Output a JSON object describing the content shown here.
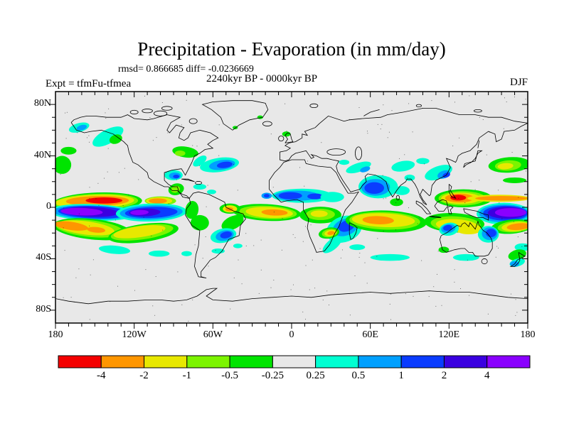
{
  "window": {
    "background": "#ffffff"
  },
  "header": {
    "title": "Precipitation - Evaporation (in mm/day)",
    "stats": "rmsd= 0.866685 diff= -0.0236669",
    "period": "2240kyr BP - 0000kyr BP",
    "experiment": "Expt = tfmFu-tfmea",
    "season": "DJF"
  },
  "axes": {
    "x_ticks": [
      {
        "label": "180",
        "lon": -180
      },
      {
        "label": "120W",
        "lon": -120
      },
      {
        "label": "60W",
        "lon": -60
      },
      {
        "label": "0",
        "lon": 0
      },
      {
        "label": "60E",
        "lon": 60
      },
      {
        "label": "120E",
        "lon": 120
      },
      {
        "label": "180",
        "lon": 180
      }
    ],
    "y_ticks": [
      {
        "label": "80N",
        "lat": 80
      },
      {
        "label": "40N",
        "lat": 40
      },
      {
        "label": "0",
        "lat": 0
      },
      {
        "label": "40S",
        "lat": -40
      },
      {
        "label": "80S",
        "lat": -80
      }
    ]
  },
  "colorbar": {
    "boundary_labels": [
      "-4",
      "-2",
      "-1",
      "-0.5",
      "-0.25",
      "0.25",
      "0.5",
      "1",
      "2",
      "4"
    ],
    "cell_colors": [
      "#f40000",
      "#ff9600",
      "#e8e800",
      "#7cf400",
      "#00e400",
      "#e8e8e8",
      "#00ffd2",
      "#00a0ff",
      "#0a3cff",
      "#3a00e0",
      "#8a00ff"
    ]
  },
  "chart_data": {
    "type": "filled_contour_map",
    "title": "Precipitation - Evaporation (in mm/day)",
    "variable": "P-E anomaly",
    "units": "mm/day",
    "season": "DJF",
    "experiment": "tfmFu-tfmea",
    "period_difference": "2240kyr BP - 0000kyr BP",
    "rmsd": 0.866685,
    "diff": -0.0236669,
    "projection": "equirectangular",
    "lon_range": [
      -180,
      180
    ],
    "lat_range": [
      -90,
      90
    ],
    "x_tick_step_deg": 10,
    "y_tick_step_deg": 10,
    "contour_levels": [
      -4,
      -2,
      -1,
      -0.5,
      -0.25,
      0.25,
      0.5,
      1,
      2,
      4
    ],
    "level_bins": {
      "red": "< -4",
      "orange": "-4 to -2",
      "yellow": "-2 to -1",
      "chart": "-1 to -0.5",
      "green": "-0.5 to -0.25",
      "gray": "-0.25 to 0.25",
      "cyan": "0.25 to 0.5",
      "lblue": "0.5 to 1",
      "blue": "1 to 2",
      "indigo": "2 to 4",
      "violet": "> 4"
    },
    "palette": {
      "red": "#f40000",
      "orange": "#ff9600",
      "yellow": "#e8e800",
      "chart": "#7cf400",
      "green": "#00e400",
      "gray": "#e8e8e8",
      "cyan": "#00ffd2",
      "lblue": "#00a0ff",
      "blue": "#0a3cff",
      "indigo": "#3a00e0",
      "violet": "#8a00ff"
    },
    "map_background": "#e8e8e8",
    "feature_format": [
      "level_key",
      "lon",
      "lat",
      "rx_deg",
      "ry_deg",
      "rot_deg"
    ],
    "anomaly_features": [
      [
        "green",
        -148,
        4,
        34,
        7.5,
        -2
      ],
      [
        "chart",
        -149,
        4.2,
        32,
        6.3,
        -2
      ],
      [
        "yellow",
        -150,
        4.5,
        30,
        5.2,
        -2
      ],
      [
        "orange",
        -148,
        5,
        24,
        3.8,
        -1
      ],
      [
        "red",
        -143,
        5.3,
        14,
        2.4,
        0
      ],
      [
        "chart",
        -100,
        5,
        12,
        3.5,
        0
      ],
      [
        "yellow",
        -101,
        5,
        10,
        2.8,
        0
      ],
      [
        "orange",
        -102,
        5,
        7,
        2,
        0
      ],
      [
        "cyan",
        -152,
        -4,
        33,
        6.5,
        2
      ],
      [
        "lblue",
        -152,
        -4,
        30,
        5.5,
        2
      ],
      [
        "blue",
        -151,
        -3.8,
        27,
        4.8,
        2
      ],
      [
        "indigo",
        -153,
        -3.6,
        21,
        3.8,
        2
      ],
      [
        "violet",
        -160,
        -3.4,
        16,
        2.9,
        2
      ],
      [
        "cyan",
        -107,
        -4,
        27,
        7,
        -2
      ],
      [
        "lblue",
        -107,
        -4,
        24,
        5.5,
        -2
      ],
      [
        "blue",
        -107,
        -4,
        20,
        4.3,
        -2
      ],
      [
        "indigo",
        -112,
        -4,
        12,
        3,
        -2
      ],
      [
        "violet",
        -116,
        -4,
        7,
        2,
        -2
      ],
      [
        "green",
        -152,
        -17,
        30,
        8,
        6
      ],
      [
        "chart",
        -154,
        -16.5,
        26,
        6.5,
        6
      ],
      [
        "yellow",
        -157,
        -16,
        22,
        5.2,
        7
      ],
      [
        "orange",
        -168,
        -14.5,
        13,
        3.2,
        8
      ],
      [
        "orange",
        -149,
        -17.5,
        7,
        2.2,
        5
      ],
      [
        "green",
        -113,
        -20,
        27,
        7,
        -8
      ],
      [
        "chart",
        -114,
        -19.5,
        24,
        5.5,
        -8
      ],
      [
        "yellow",
        -116,
        -19,
        20,
        4.3,
        -8
      ],
      [
        "cyan",
        -135,
        -33,
        12,
        3.2,
        5
      ],
      [
        "cyan",
        -101,
        -36,
        8,
        2.4,
        0
      ],
      [
        "cyan",
        -80,
        -36,
        4,
        2,
        0
      ],
      [
        "cyan",
        -140,
        55,
        13,
        5.5,
        -28
      ],
      [
        "green",
        -134,
        53,
        5,
        3.5,
        -20
      ],
      [
        "cyan",
        -162,
        62,
        8,
        3.5,
        -15
      ],
      [
        "lblue",
        -160,
        62,
        4,
        2,
        -15
      ],
      [
        "green",
        -175,
        33,
        7,
        7,
        0
      ],
      [
        "green",
        -170,
        44,
        6,
        3,
        0
      ],
      [
        "green",
        166,
        33,
        16,
        6,
        -4
      ],
      [
        "chart",
        165,
        32.5,
        10,
        4,
        -4
      ],
      [
        "yellow",
        163,
        32,
        6,
        2.4,
        -4
      ],
      [
        "green",
        170,
        21,
        9,
        2.2,
        0
      ],
      [
        "cyan",
        112,
        27,
        11,
        5,
        -20
      ],
      [
        "lblue",
        116,
        25.5,
        5,
        3,
        -20
      ],
      [
        "blue",
        118,
        25,
        3,
        1.8,
        -20
      ],
      [
        "cyan",
        85,
        32,
        9,
        4,
        -10
      ],
      [
        "cyan",
        100,
        36,
        5,
        2.4,
        0
      ],
      [
        "cyan",
        51,
        31,
        10,
        3.5,
        -18
      ],
      [
        "lblue",
        56,
        29.5,
        4,
        2,
        -18
      ],
      [
        "cyan",
        40,
        35,
        4,
        2,
        0
      ],
      [
        "cyan",
        66,
        16,
        15,
        9,
        0
      ],
      [
        "lblue",
        64,
        15.5,
        11,
        6.5,
        0
      ],
      [
        "blue",
        63,
        15,
        7.5,
        4.5,
        0
      ],
      [
        "cyan",
        84,
        13,
        6,
        3.5,
        0
      ],
      [
        "cyan",
        90,
        23,
        4,
        2.5,
        0
      ],
      [
        "cyan",
        8,
        9,
        23,
        5.5,
        0
      ],
      [
        "lblue",
        4,
        9,
        17,
        4,
        0
      ],
      [
        "blue",
        -1,
        9,
        9,
        2.8,
        0
      ],
      [
        "blue",
        18,
        8.5,
        6,
        2.3,
        0
      ],
      [
        "cyan",
        31,
        8,
        9,
        4,
        0
      ],
      [
        "lblue",
        -19,
        9,
        4,
        2.4,
        0
      ],
      [
        "blue",
        -19,
        9,
        2.2,
        1.4,
        0
      ],
      [
        "green",
        -19,
        -4,
        26,
        6.5,
        3
      ],
      [
        "chart",
        -18,
        -4,
        22,
        5.2,
        3
      ],
      [
        "yellow",
        -17,
        -4,
        18,
        4.2,
        3
      ],
      [
        "orange",
        -13,
        -4,
        10,
        2.4,
        2
      ],
      [
        "green",
        -47,
        -1,
        8,
        4,
        0
      ],
      [
        "yellow",
        -47,
        -1.2,
        5.5,
        2.8,
        0
      ],
      [
        "orange",
        -47.5,
        -1.5,
        3,
        1.6,
        0
      ],
      [
        "green",
        22,
        -6,
        16,
        6.5,
        0
      ],
      [
        "chart",
        22,
        -5.5,
        11,
        4.4,
        0
      ],
      [
        "yellow",
        21,
        -5,
        6.5,
        2.6,
        0
      ],
      [
        "cyan",
        40,
        -17,
        14,
        10,
        -20
      ],
      [
        "lblue",
        41,
        -15.5,
        10,
        6.5,
        -20
      ],
      [
        "blue",
        42,
        -14.5,
        6.5,
        4.2,
        -20
      ],
      [
        "cyan",
        31,
        -29,
        9,
        4,
        -40
      ],
      [
        "green",
        28.5,
        -20,
        8,
        4.2,
        -10
      ],
      [
        "chart",
        29,
        -20,
        6,
        3.2,
        -10
      ],
      [
        "yellow",
        29.5,
        -20,
        4.5,
        2.4,
        -10
      ],
      [
        "orange",
        30,
        -20,
        2.8,
        1.5,
        -10
      ],
      [
        "green",
        72,
        -11,
        31,
        8.5,
        2
      ],
      [
        "chart",
        71,
        -10.5,
        27,
        6.8,
        2
      ],
      [
        "yellow",
        70,
        -10,
        24,
        5.4,
        2
      ],
      [
        "orange",
        66,
        -10,
        12,
        3.2,
        2
      ],
      [
        "green",
        80,
        4,
        5,
        3,
        0
      ],
      [
        "cyan",
        75,
        -39,
        15,
        2.6,
        0
      ],
      [
        "cyan",
        50,
        -31,
        6,
        2.2,
        0
      ],
      [
        "green",
        131,
        7,
        22,
        7,
        0
      ],
      [
        "chart",
        130,
        7,
        18,
        5.6,
        0
      ],
      [
        "yellow",
        129,
        7,
        15,
        4.4,
        0
      ],
      [
        "orange",
        128,
        7.2,
        11,
        3.4,
        0
      ],
      [
        "red",
        127,
        7.5,
        6,
        2.2,
        0
      ],
      [
        "yellow",
        158,
        7,
        24,
        2.8,
        0
      ],
      [
        "orange",
        160,
        7,
        20,
        1.8,
        0
      ],
      [
        "green",
        124,
        -12,
        23,
        7.5,
        3
      ],
      [
        "chart",
        125,
        -13,
        19,
        6,
        3
      ],
      [
        "yellow",
        126,
        -14,
        16,
        4.8,
        4
      ],
      [
        "yellow",
        135,
        -17,
        10,
        4,
        0
      ],
      [
        "cyan",
        162,
        -5,
        21,
        8.5,
        0
      ],
      [
        "lblue",
        162,
        -4.8,
        19,
        7,
        0
      ],
      [
        "blue",
        163,
        -4.6,
        17,
        5.8,
        0
      ],
      [
        "indigo",
        164,
        -4.3,
        14.5,
        4.6,
        0
      ],
      [
        "violet",
        167,
        -4,
        12,
        3.4,
        0
      ],
      [
        "green",
        168,
        -15,
        16,
        5.5,
        -5
      ],
      [
        "chart",
        170,
        -15,
        13,
        4.4,
        -5
      ],
      [
        "yellow",
        171,
        -15,
        11,
        3.6,
        -5
      ],
      [
        "orange",
        173,
        -15,
        9,
        2.6,
        -5
      ],
      [
        "cyan",
        120,
        -17,
        7.5,
        5,
        -10
      ],
      [
        "lblue",
        119.5,
        -16.5,
        5.5,
        3.5,
        -10
      ],
      [
        "blue",
        119,
        -16,
        3.5,
        2.2,
        -10
      ],
      [
        "cyan",
        150,
        -21,
        8,
        6.5,
        0
      ],
      [
        "lblue",
        151,
        -20.5,
        6,
        5,
        0
      ],
      [
        "blue",
        152,
        -20,
        4,
        3.2,
        0
      ],
      [
        "cyan",
        133,
        -39,
        10,
        2.6,
        0
      ],
      [
        "green",
        116,
        -33,
        4,
        2.4,
        0
      ],
      [
        "cyan",
        176,
        -31,
        6,
        3,
        0
      ],
      [
        "green",
        172,
        -37,
        7,
        4,
        -15
      ],
      [
        "cyan",
        172,
        -43,
        6,
        3,
        -15
      ],
      [
        "lblue",
        170,
        -44,
        3.5,
        2.2,
        0
      ],
      [
        "cyan",
        -55,
        33,
        15,
        5.5,
        -8
      ],
      [
        "lblue",
        -53,
        33,
        10,
        3.8,
        -8
      ],
      [
        "blue",
        -51,
        33,
        6,
        2.4,
        -8
      ],
      [
        "cyan",
        -70,
        36,
        6,
        3,
        -35
      ],
      [
        "cyan",
        -90,
        25,
        7,
        4,
        0
      ],
      [
        "lblue",
        -89,
        24.5,
        4.5,
        2.6,
        0
      ],
      [
        "blue",
        -88,
        24,
        2.4,
        1.4,
        0
      ],
      [
        "cyan",
        -70,
        16,
        5,
        2.2,
        0
      ],
      [
        "cyan",
        -61,
        12,
        3.5,
        1.8,
        0
      ],
      [
        "green",
        -88,
        14,
        6,
        4.5,
        -15
      ],
      [
        "chart",
        -88.5,
        14,
        3.5,
        2.6,
        -15
      ],
      [
        "green",
        -81,
        43,
        10,
        4.2,
        8
      ],
      [
        "chart",
        -85,
        42,
        4,
        2.2,
        0
      ],
      [
        "green",
        -76,
        -2,
        5,
        7,
        8
      ],
      [
        "green",
        -70,
        -12,
        7,
        6,
        0
      ],
      [
        "green",
        -45,
        -12,
        9,
        5,
        -25
      ],
      [
        "cyan",
        -52,
        -22,
        10,
        5.5,
        -12
      ],
      [
        "lblue",
        -51,
        -22,
        7,
        4,
        -12
      ],
      [
        "blue",
        -50,
        -21.5,
        4.5,
        2.6,
        -12
      ],
      [
        "cyan",
        -56,
        -34,
        5,
        2,
        0
      ],
      [
        "cyan",
        -41,
        -30,
        3.5,
        1.8,
        0
      ],
      [
        "green",
        -4,
        57,
        3.2,
        2,
        0
      ],
      [
        "green",
        -24,
        70,
        2.2,
        1.4,
        0
      ],
      [
        "green",
        -43,
        62,
        2,
        1.3,
        0
      ]
    ]
  }
}
